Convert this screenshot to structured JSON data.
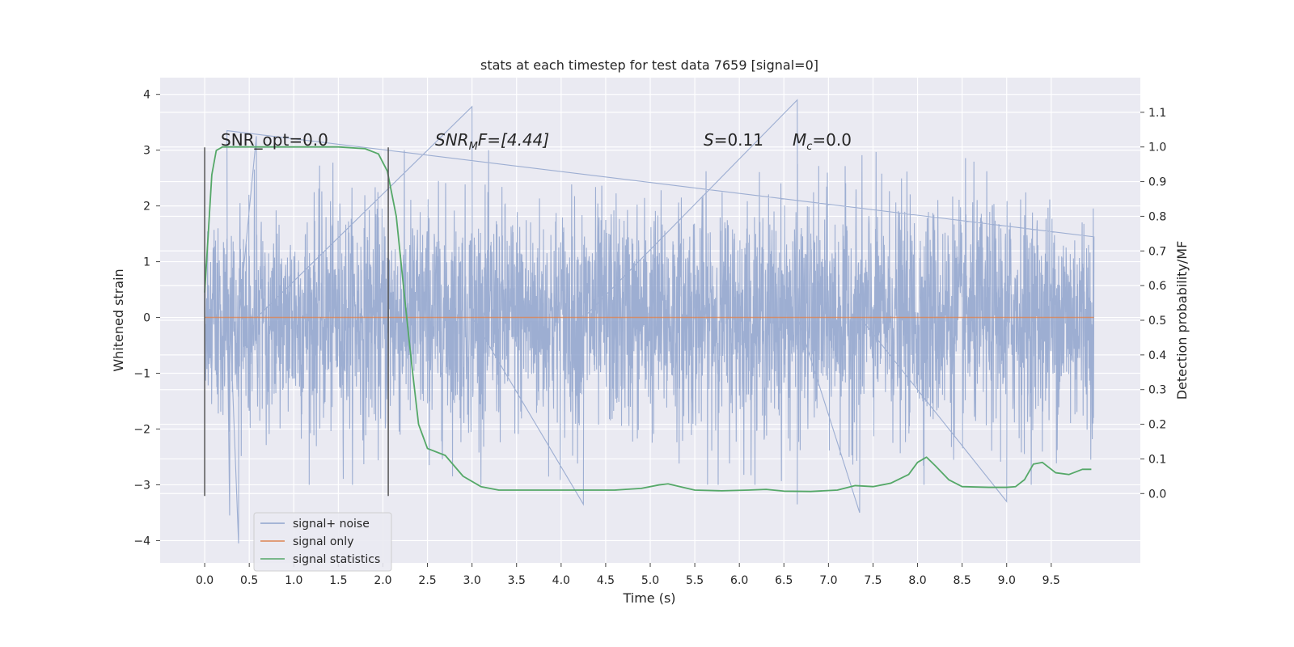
{
  "chart_data": {
    "type": "line",
    "title": "stats at each timestep for test data 7659 [signal=0]",
    "xlabel": "Time (s)",
    "ylabel": "Whitened strain",
    "y2label": "Detection probability/MF",
    "xlim": [
      -0.5,
      10.5
    ],
    "ylim": [
      -4.4,
      4.3
    ],
    "y2lim": [
      -0.2,
      1.2
    ],
    "x_ticks": [
      0.0,
      0.5,
      1.0,
      1.5,
      2.0,
      2.5,
      3.0,
      3.5,
      4.0,
      4.5,
      5.0,
      5.5,
      6.0,
      6.5,
      7.0,
      7.5,
      8.0,
      8.5,
      9.0,
      9.5
    ],
    "y_ticks": [
      -4,
      -3,
      -2,
      -1,
      0,
      1,
      2,
      3,
      4
    ],
    "y2_ticks": [
      0.0,
      0.1,
      0.2,
      0.3,
      0.4,
      0.5,
      0.6,
      0.7,
      0.8,
      0.9,
      1.0,
      1.1
    ],
    "grid": true,
    "legend_position": "lower-left",
    "annotations": {
      "snr_opt": "SNR_opt=0.0",
      "snr_mf_base": "SNR",
      "snr_mf_sub": "M",
      "snr_mf_tail": "F=[4.44]",
      "s_sym": "S",
      "s_val": "=0.11",
      "mc_sym": "M",
      "mc_sub": "c",
      "mc_val": "=0.0"
    },
    "vlines": [
      {
        "x": 0.0,
        "ymin": -3.2,
        "ymax": 3.05
      },
      {
        "x": 2.06,
        "ymin": -3.2,
        "ymax": 3.05
      }
    ],
    "series": [
      {
        "name": "signal+ noise",
        "color": "#8fa3cc",
        "noise": {
          "x_start": 0.0,
          "x_end": 9.98,
          "sigma": 1.0,
          "extremes": [
            [
              0.25,
              3.35
            ],
            [
              0.28,
              -3.55
            ],
            [
              0.38,
              -4.05
            ],
            [
              0.58,
              3.25
            ],
            [
              3.0,
              3.78
            ],
            [
              4.25,
              -3.35
            ],
            [
              6.65,
              3.9
            ],
            [
              6.65,
              -3.35
            ],
            [
              7.35,
              -3.5
            ],
            [
              9.0,
              -3.3
            ]
          ]
        }
      },
      {
        "name": "signal only",
        "color": "#dd8452",
        "x": [
          0.0,
          9.98
        ],
        "values": [
          0.0,
          0.0
        ]
      },
      {
        "name": "signal statistics",
        "color": "#55a868",
        "axis": "right",
        "x": [
          0.0,
          0.08,
          0.13,
          0.2,
          0.3,
          0.5,
          1.0,
          1.5,
          1.8,
          1.95,
          2.05,
          2.15,
          2.25,
          2.32,
          2.4,
          2.5,
          2.7,
          2.9,
          3.1,
          3.3,
          3.6,
          3.9,
          4.2,
          4.6,
          4.9,
          5.1,
          5.2,
          5.3,
          5.5,
          5.8,
          6.1,
          6.3,
          6.5,
          6.8,
          7.1,
          7.3,
          7.5,
          7.7,
          7.9,
          8.0,
          8.1,
          8.2,
          8.35,
          8.5,
          8.8,
          9.0,
          9.1,
          9.2,
          9.3,
          9.4,
          9.55,
          9.7,
          9.85,
          9.95
        ],
        "values": [
          0.58,
          0.92,
          0.99,
          1.0,
          1.0,
          1.0,
          1.0,
          1.0,
          0.995,
          0.98,
          0.93,
          0.8,
          0.55,
          0.38,
          0.2,
          0.13,
          0.11,
          0.05,
          0.02,
          0.01,
          0.01,
          0.01,
          0.01,
          0.01,
          0.015,
          0.025,
          0.028,
          0.022,
          0.01,
          0.008,
          0.01,
          0.012,
          0.007,
          0.006,
          0.01,
          0.023,
          0.02,
          0.03,
          0.055,
          0.09,
          0.105,
          0.08,
          0.04,
          0.02,
          0.018,
          0.018,
          0.02,
          0.04,
          0.085,
          0.09,
          0.06,
          0.055,
          0.07,
          0.07
        ]
      }
    ]
  }
}
